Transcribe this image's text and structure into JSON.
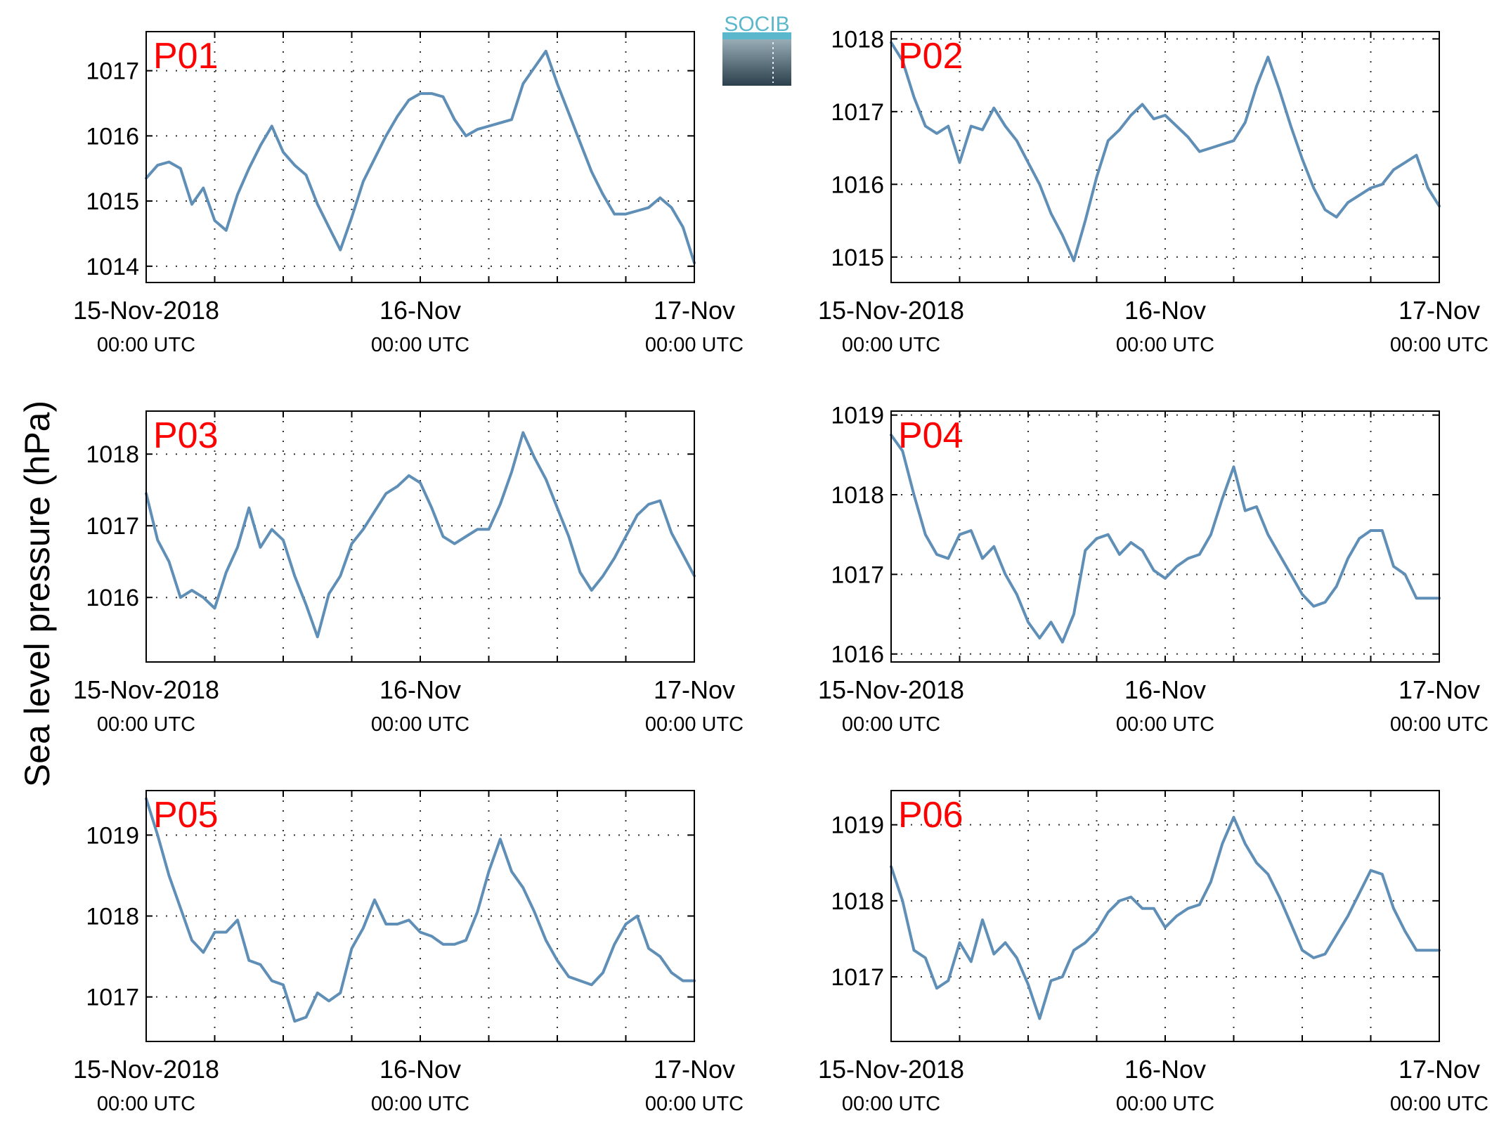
{
  "figure": {
    "ylabel": "Sea level pressure (hPa)",
    "logo_text": "SOCIB"
  },
  "colors": {
    "line": "#5f8fb6",
    "panel_label": "#ff0000",
    "grid": "#333333",
    "logo_top": "#5bb8cc",
    "logo_bottom": "#2b3f4c"
  },
  "chart_data": [
    {
      "type": "line",
      "panel_label": "P01",
      "x_unit": "hours since 15-Nov-2018 00:00 UTC",
      "xlim": [
        0,
        48
      ],
      "ylim": [
        1013.75,
        1017.6
      ],
      "yticks": [
        1014,
        1015,
        1016,
        1017
      ],
      "x_ticks": [
        {
          "line1": "15-Nov-2018",
          "line2": "00:00 UTC"
        },
        {
          "line1": "16-Nov",
          "line2": "00:00 UTC"
        },
        {
          "line1": "17-Nov",
          "line2": "00:00 UTC"
        }
      ],
      "x": [
        0,
        1,
        2,
        3,
        4,
        5,
        6,
        7,
        8,
        9,
        10,
        11,
        12,
        13,
        14,
        15,
        16,
        17,
        18,
        19,
        20,
        21,
        22,
        23,
        24,
        25,
        26,
        27,
        28,
        29,
        30,
        31,
        32,
        33,
        34,
        35,
        36,
        37,
        38,
        39,
        40,
        41,
        42,
        43,
        44,
        45,
        46,
        47,
        48
      ],
      "y": [
        1015.35,
        1015.55,
        1015.6,
        1015.5,
        1014.95,
        1015.2,
        1014.7,
        1014.55,
        1015.1,
        1015.5,
        1015.85,
        1016.15,
        1015.75,
        1015.55,
        1015.4,
        1014.95,
        1014.6,
        1014.25,
        1014.75,
        1015.3,
        1015.65,
        1016.0,
        1016.3,
        1016.55,
        1016.65,
        1016.65,
        1016.6,
        1016.25,
        1016.0,
        1016.1,
        1016.15,
        1016.2,
        1016.25,
        1016.8,
        1017.05,
        1017.3,
        1016.8,
        1016.35,
        1015.9,
        1015.45,
        1015.1,
        1014.8,
        1014.8,
        1014.85,
        1014.9,
        1015.05,
        1014.9,
        1014.6,
        1014.05
      ]
    },
    {
      "type": "line",
      "panel_label": "P02",
      "x_unit": "hours since 15-Nov-2018 00:00 UTC",
      "xlim": [
        0,
        48
      ],
      "ylim": [
        1014.65,
        1018.1
      ],
      "yticks": [
        1015,
        1016,
        1017,
        1018
      ],
      "x_ticks": [
        {
          "line1": "15-Nov-2018",
          "line2": "00:00 UTC"
        },
        {
          "line1": "16-Nov",
          "line2": "00:00 UTC"
        },
        {
          "line1": "17-Nov",
          "line2": "00:00 UTC"
        }
      ],
      "x": [
        0,
        1,
        2,
        3,
        4,
        5,
        6,
        7,
        8,
        9,
        10,
        11,
        12,
        13,
        14,
        15,
        16,
        17,
        18,
        19,
        20,
        21,
        22,
        23,
        24,
        25,
        26,
        27,
        28,
        29,
        30,
        31,
        32,
        33,
        34,
        35,
        36,
        37,
        38,
        39,
        40,
        41,
        42,
        43,
        44,
        45,
        46,
        47,
        48
      ],
      "y": [
        1017.95,
        1017.7,
        1017.2,
        1016.8,
        1016.7,
        1016.8,
        1016.3,
        1016.8,
        1016.75,
        1017.05,
        1016.8,
        1016.6,
        1016.3,
        1016.0,
        1015.6,
        1015.3,
        1014.95,
        1015.5,
        1016.1,
        1016.6,
        1016.75,
        1016.95,
        1017.1,
        1016.9,
        1016.95,
        1016.8,
        1016.65,
        1016.45,
        1016.5,
        1016.55,
        1016.6,
        1016.85,
        1017.35,
        1017.75,
        1017.3,
        1016.8,
        1016.35,
        1015.95,
        1015.65,
        1015.55,
        1015.75,
        1015.85,
        1015.95,
        1016.0,
        1016.2,
        1016.3,
        1016.4,
        1015.95,
        1015.7
      ]
    },
    {
      "type": "line",
      "panel_label": "P03",
      "x_unit": "hours since 15-Nov-2018 00:00 UTC",
      "xlim": [
        0,
        48
      ],
      "ylim": [
        1015.1,
        1018.6
      ],
      "yticks": [
        1016,
        1017,
        1018
      ],
      "x_ticks": [
        {
          "line1": "15-Nov-2018",
          "line2": "00:00 UTC"
        },
        {
          "line1": "16-Nov",
          "line2": "00:00 UTC"
        },
        {
          "line1": "17-Nov",
          "line2": "00:00 UTC"
        }
      ],
      "x": [
        0,
        1,
        2,
        3,
        4,
        5,
        6,
        7,
        8,
        9,
        10,
        11,
        12,
        13,
        14,
        15,
        16,
        17,
        18,
        19,
        20,
        21,
        22,
        23,
        24,
        25,
        26,
        27,
        28,
        29,
        30,
        31,
        32,
        33,
        34,
        35,
        36,
        37,
        38,
        39,
        40,
        41,
        42,
        43,
        44,
        45,
        46,
        47,
        48
      ],
      "y": [
        1017.45,
        1016.8,
        1016.5,
        1016.0,
        1016.1,
        1016.0,
        1015.85,
        1016.35,
        1016.7,
        1017.25,
        1016.7,
        1016.95,
        1016.8,
        1016.3,
        1015.9,
        1015.45,
        1016.05,
        1016.3,
        1016.75,
        1016.95,
        1017.2,
        1017.45,
        1017.55,
        1017.7,
        1017.6,
        1017.25,
        1016.85,
        1016.75,
        1016.85,
        1016.95,
        1016.95,
        1017.3,
        1017.75,
        1018.3,
        1017.95,
        1017.65,
        1017.25,
        1016.85,
        1016.35,
        1016.1,
        1016.3,
        1016.55,
        1016.85,
        1017.15,
        1017.3,
        1017.35,
        1016.9,
        1016.6,
        1016.3
      ]
    },
    {
      "type": "line",
      "panel_label": "P04",
      "x_unit": "hours since 15-Nov-2018 00:00 UTC",
      "xlim": [
        0,
        48
      ],
      "ylim": [
        1015.9,
        1019.05
      ],
      "yticks": [
        1016,
        1017,
        1018,
        1019
      ],
      "x_ticks": [
        {
          "line1": "15-Nov-2018",
          "line2": "00:00 UTC"
        },
        {
          "line1": "16-Nov",
          "line2": "00:00 UTC"
        },
        {
          "line1": "17-Nov",
          "line2": "00:00 UTC"
        }
      ],
      "x": [
        0,
        1,
        2,
        3,
        4,
        5,
        6,
        7,
        8,
        9,
        10,
        11,
        12,
        13,
        14,
        15,
        16,
        17,
        18,
        19,
        20,
        21,
        22,
        23,
        24,
        25,
        26,
        27,
        28,
        29,
        30,
        31,
        32,
        33,
        34,
        35,
        36,
        37,
        38,
        39,
        40,
        41,
        42,
        43,
        44,
        45,
        46,
        47,
        48
      ],
      "y": [
        1018.75,
        1018.55,
        1018.0,
        1017.5,
        1017.25,
        1017.2,
        1017.5,
        1017.55,
        1017.2,
        1017.35,
        1017.0,
        1016.75,
        1016.4,
        1016.2,
        1016.4,
        1016.15,
        1016.5,
        1017.3,
        1017.45,
        1017.5,
        1017.25,
        1017.4,
        1017.3,
        1017.05,
        1016.95,
        1017.1,
        1017.2,
        1017.25,
        1017.5,
        1017.95,
        1018.35,
        1017.8,
        1017.85,
        1017.5,
        1017.25,
        1017.0,
        1016.75,
        1016.6,
        1016.65,
        1016.85,
        1017.2,
        1017.45,
        1017.55,
        1017.55,
        1017.1,
        1017.0,
        1016.7,
        1016.7,
        1016.7
      ]
    },
    {
      "type": "line",
      "panel_label": "P05",
      "x_unit": "hours since 15-Nov-2018 00:00 UTC",
      "xlim": [
        0,
        48
      ],
      "ylim": [
        1016.45,
        1019.55
      ],
      "yticks": [
        1017,
        1018,
        1019
      ],
      "x_ticks": [
        {
          "line1": "15-Nov-2018",
          "line2": "00:00 UTC"
        },
        {
          "line1": "16-Nov",
          "line2": "00:00 UTC"
        },
        {
          "line1": "17-Nov",
          "line2": "00:00 UTC"
        }
      ],
      "x": [
        0,
        1,
        2,
        3,
        4,
        5,
        6,
        7,
        8,
        9,
        10,
        11,
        12,
        13,
        14,
        15,
        16,
        17,
        18,
        19,
        20,
        21,
        22,
        23,
        24,
        25,
        26,
        27,
        28,
        29,
        30,
        31,
        32,
        33,
        34,
        35,
        36,
        37,
        38,
        39,
        40,
        41,
        42,
        43,
        44,
        45,
        46,
        47,
        48
      ],
      "y": [
        1019.45,
        1019.0,
        1018.5,
        1018.1,
        1017.7,
        1017.55,
        1017.8,
        1017.8,
        1017.95,
        1017.45,
        1017.4,
        1017.2,
        1017.15,
        1016.7,
        1016.75,
        1017.05,
        1016.95,
        1017.05,
        1017.6,
        1017.85,
        1018.2,
        1017.9,
        1017.9,
        1017.95,
        1017.8,
        1017.75,
        1017.65,
        1017.65,
        1017.7,
        1018.05,
        1018.55,
        1018.95,
        1018.55,
        1018.35,
        1018.05,
        1017.7,
        1017.45,
        1017.25,
        1017.2,
        1017.15,
        1017.3,
        1017.65,
        1017.9,
        1018.0,
        1017.6,
        1017.5,
        1017.3,
        1017.2,
        1017.2
      ]
    },
    {
      "type": "line",
      "panel_label": "P06",
      "x_unit": "hours since 15-Nov-2018 00:00 UTC",
      "xlim": [
        0,
        48
      ],
      "ylim": [
        1016.15,
        1019.45
      ],
      "yticks": [
        1017,
        1018,
        1019
      ],
      "x_ticks": [
        {
          "line1": "15-Nov-2018",
          "line2": "00:00 UTC"
        },
        {
          "line1": "16-Nov",
          "line2": "00:00 UTC"
        },
        {
          "line1": "17-Nov",
          "line2": "00:00 UTC"
        }
      ],
      "x": [
        0,
        1,
        2,
        3,
        4,
        5,
        6,
        7,
        8,
        9,
        10,
        11,
        12,
        13,
        14,
        15,
        16,
        17,
        18,
        19,
        20,
        21,
        22,
        23,
        24,
        25,
        26,
        27,
        28,
        29,
        30,
        31,
        32,
        33,
        34,
        35,
        36,
        37,
        38,
        39,
        40,
        41,
        42,
        43,
        44,
        45,
        46,
        47,
        48
      ],
      "y": [
        1018.45,
        1018.0,
        1017.35,
        1017.25,
        1016.85,
        1016.95,
        1017.45,
        1017.2,
        1017.75,
        1017.3,
        1017.45,
        1017.25,
        1016.9,
        1016.45,
        1016.95,
        1017.0,
        1017.35,
        1017.45,
        1017.6,
        1017.85,
        1018.0,
        1018.05,
        1017.9,
        1017.9,
        1017.65,
        1017.8,
        1017.9,
        1017.95,
        1018.25,
        1018.75,
        1019.1,
        1018.75,
        1018.5,
        1018.35,
        1018.05,
        1017.7,
        1017.35,
        1017.25,
        1017.3,
        1017.55,
        1017.8,
        1018.1,
        1018.4,
        1018.35,
        1017.9,
        1017.6,
        1017.35,
        1017.35,
        1017.35
      ]
    }
  ]
}
